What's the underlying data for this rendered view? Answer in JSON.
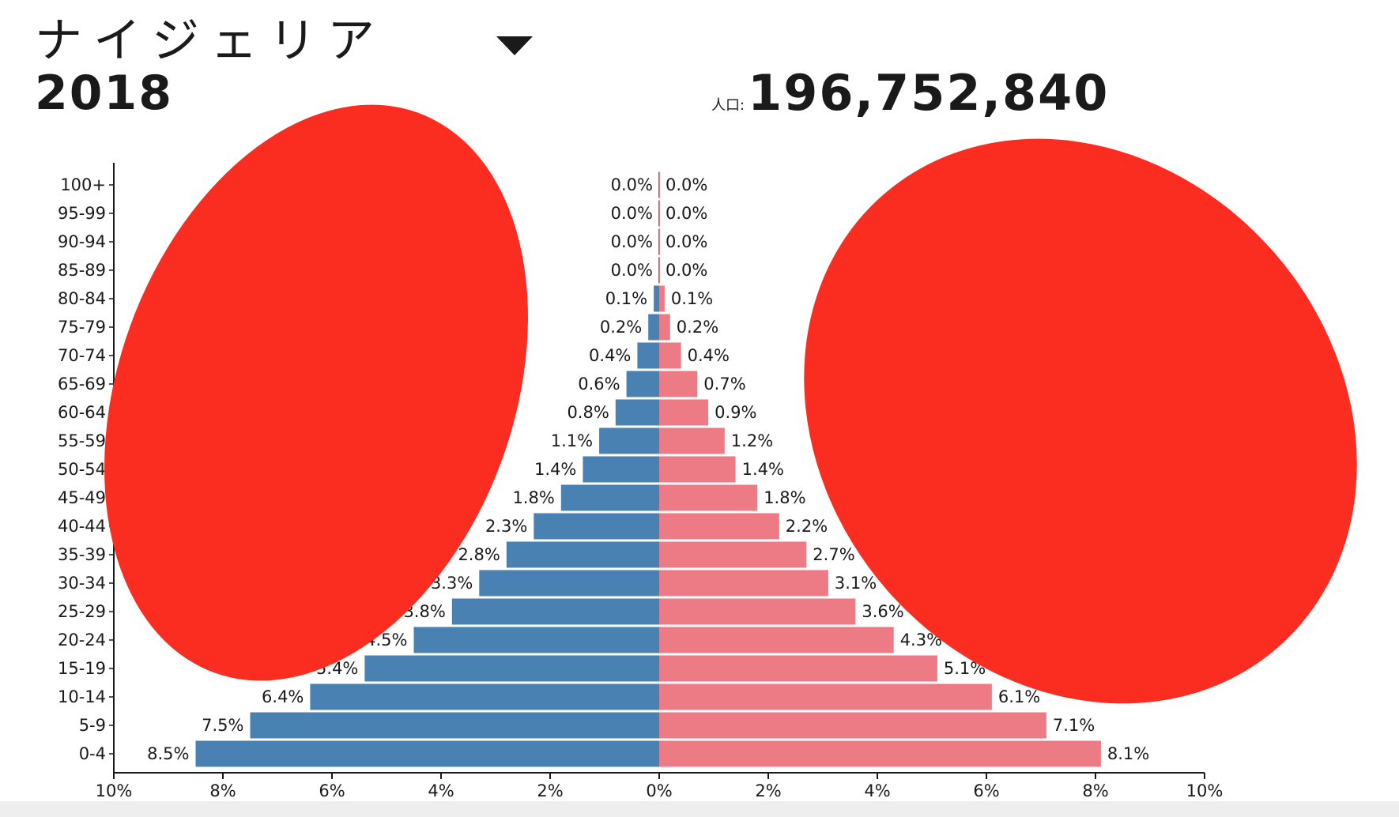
{
  "header": {
    "country": "ナイジェリア",
    "year": "2018",
    "population_label": "人口:",
    "population_value": "196,752,840"
  },
  "colors": {
    "male": "#4a81b3",
    "female": "#ec7b86",
    "overlay": "#fb2c20",
    "axis": "#1a1a1a"
  },
  "icons": {
    "dropdown": "chevron-down-icon"
  },
  "chart_data": {
    "type": "bar",
    "orientation": "horizontal-diverging",
    "categories": [
      "100+",
      "95-99",
      "90-94",
      "85-89",
      "80-84",
      "75-79",
      "70-74",
      "65-69",
      "60-64",
      "55-59",
      "50-54",
      "45-49",
      "40-44",
      "35-39",
      "30-34",
      "25-29",
      "20-24",
      "15-19",
      "10-14",
      "5-9",
      "0-4"
    ],
    "series": [
      {
        "side": "left",
        "color": "#4a81b3",
        "values": [
          0.0,
          0.0,
          0.0,
          0.0,
          0.1,
          0.2,
          0.4,
          0.6,
          0.8,
          1.1,
          1.4,
          1.8,
          2.3,
          2.8,
          3.3,
          3.8,
          4.5,
          5.4,
          6.4,
          7.5,
          8.5
        ],
        "labels": [
          "0.0%",
          "0.0%",
          "0.0%",
          "0.0%",
          "0.1%",
          "0.2%",
          "0.4%",
          "0.6%",
          "0.8%",
          "1.1%",
          "1.4%",
          "1.8%",
          "2.3%",
          "2.8%",
          "3.3%",
          "3.8%",
          "4.5%",
          "5.4%",
          "6.4%",
          "7.5%",
          "8.5%"
        ]
      },
      {
        "side": "right",
        "color": "#ec7b86",
        "values": [
          0.0,
          0.0,
          0.0,
          0.0,
          0.1,
          0.2,
          0.4,
          0.7,
          0.9,
          1.2,
          1.4,
          1.8,
          2.2,
          2.7,
          3.1,
          3.6,
          4.3,
          5.1,
          6.1,
          7.1,
          8.1
        ],
        "labels": [
          "0.0%",
          "0.0%",
          "0.0%",
          "0.0%",
          "0.1%",
          "0.2%",
          "0.4%",
          "0.7%",
          "0.9%",
          "1.2%",
          "1.4%",
          "1.8%",
          "2.2%",
          "2.7%",
          "3.1%",
          "3.6%",
          "4.3%",
          "5.1%",
          "6.1%",
          "7.1%",
          "8.1%"
        ]
      }
    ],
    "xlim": [
      -10,
      10
    ],
    "xticks": [
      -10,
      -8,
      -6,
      -4,
      -2,
      0,
      2,
      4,
      6,
      8,
      10
    ],
    "xtick_labels": [
      "10%",
      "8%",
      "6%",
      "4%",
      "2%",
      "0%",
      "2%",
      "4%",
      "6%",
      "8%",
      "10%"
    ],
    "grid": false,
    "legend": "none"
  }
}
